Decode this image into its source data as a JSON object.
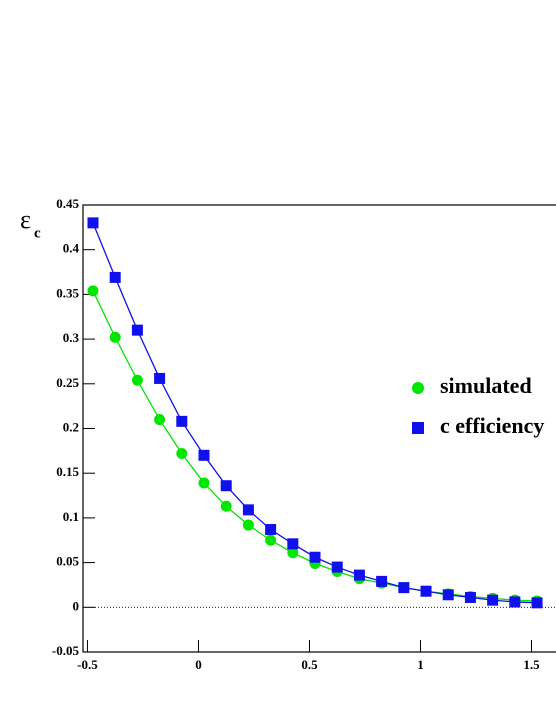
{
  "chart_data": {
    "type": "line",
    "y_label": "ε",
    "y_label_subscript": "c",
    "x": [
      -0.475,
      -0.375,
      -0.275,
      -0.175,
      -0.075,
      0.025,
      0.125,
      0.225,
      0.325,
      0.425,
      0.525,
      0.625,
      0.725,
      0.825,
      0.925,
      1.025,
      1.125,
      1.225,
      1.325,
      1.425,
      1.525
    ],
    "series": [
      {
        "name": "simulated",
        "color": "#00e600",
        "marker": "circle",
        "values": [
          0.354,
          0.302,
          0.254,
          0.21,
          0.172,
          0.139,
          0.113,
          0.092,
          0.075,
          0.061,
          0.049,
          0.04,
          0.032,
          0.027,
          0.022,
          0.018,
          0.015,
          0.012,
          0.01,
          0.008,
          0.007
        ]
      },
      {
        "name": "c efficiency",
        "color": "#1010ee",
        "marker": "square",
        "values": [
          0.43,
          0.369,
          0.31,
          0.256,
          0.208,
          0.17,
          0.136,
          0.109,
          0.087,
          0.071,
          0.056,
          0.045,
          0.036,
          0.029,
          0.022,
          0.018,
          0.014,
          0.011,
          0.008,
          0.006,
          0.005
        ]
      }
    ],
    "xlim": [
      -0.52,
      1.75
    ],
    "xticks": [
      -0.5,
      0,
      0.5,
      1,
      1.5
    ],
    "ylim": [
      -0.05,
      0.45
    ],
    "yticks": [
      -0.05,
      0,
      0.05,
      0.1,
      0.15,
      0.2,
      0.25,
      0.3,
      0.35,
      0.4,
      0.45
    ],
    "reference_line": 0
  }
}
